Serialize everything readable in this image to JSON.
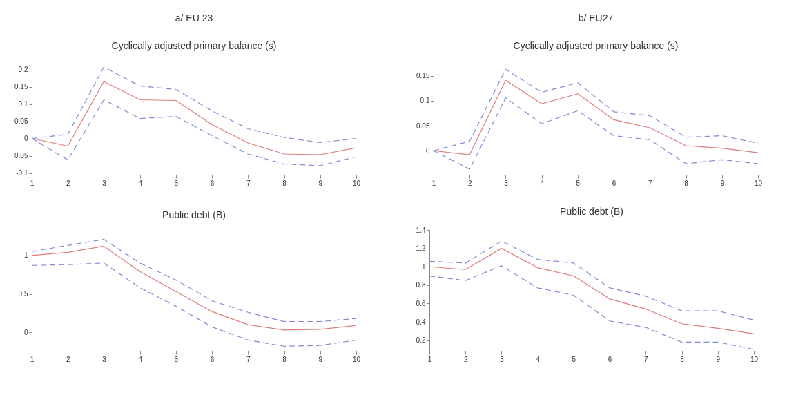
{
  "chart_data": [
    {
      "type": "line",
      "title": "a/ EU 23",
      "subtitle": "Cyclically adjusted primary balance (s)",
      "x": [
        1,
        2,
        3,
        4,
        5,
        6,
        7,
        8,
        9,
        10
      ],
      "xlim": [
        1,
        10
      ],
      "xticks": [
        1,
        2,
        3,
        4,
        5,
        6,
        7,
        8,
        9,
        10
      ],
      "ylim": [
        -0.105,
        0.225
      ],
      "yticks": [
        -0.1,
        {
          "value": -0.05,
          "label": "0.05"
        },
        0,
        0.05,
        0.1,
        0.15,
        0.2
      ],
      "grid": false,
      "series": [
        {
          "color": "#e07a7a",
          "line_style": "solid",
          "values": [
            0,
            -0.022,
            0.165,
            0.112,
            0.11,
            0.04,
            -0.013,
            -0.045,
            -0.047,
            -0.027
          ]
        },
        {
          "color": "#8088d8",
          "line_style": "dashed",
          "values": [
            0,
            0.012,
            0.207,
            0.152,
            0.142,
            0.08,
            0.028,
            0.003,
            -0.012,
            0
          ]
        },
        {
          "color": "#8088d8",
          "line_style": "dashed",
          "values": [
            0,
            -0.062,
            0.112,
            0.058,
            0.064,
            0.008,
            -0.045,
            -0.074,
            -0.079,
            -0.053
          ]
        }
      ]
    },
    {
      "type": "line",
      "title": "b/ EU27",
      "subtitle": "Cyclically adjusted primary balance (s)",
      "x": [
        1,
        2,
        3,
        4,
        5,
        6,
        7,
        8,
        9,
        10
      ],
      "xlim": [
        1,
        10
      ],
      "xticks": [
        1,
        2,
        3,
        4,
        5,
        6,
        7,
        8,
        9,
        10
      ],
      "ylim": [
        -0.048,
        0.18
      ],
      "yticks": [
        0,
        0.05,
        0.1,
        0.15
      ],
      "grid": false,
      "series": [
        {
          "color": "#e07a7a",
          "line_style": "solid",
          "values": [
            0,
            -0.008,
            0.141,
            0.094,
            0.114,
            0.062,
            0.046,
            0.01,
            0.005,
            -0.004
          ]
        },
        {
          "color": "#8088d8",
          "line_style": "dashed",
          "values": [
            0,
            0.019,
            0.163,
            0.117,
            0.136,
            0.078,
            0.07,
            0.027,
            0.03,
            0.015
          ]
        },
        {
          "color": "#8088d8",
          "line_style": "dashed",
          "values": [
            0,
            -0.037,
            0.106,
            0.054,
            0.08,
            0.03,
            0.022,
            -0.026,
            -0.018,
            -0.026
          ]
        }
      ]
    },
    {
      "type": "line",
      "title": "Public debt (B)",
      "x": [
        1,
        2,
        3,
        4,
        5,
        6,
        7,
        8,
        9,
        10
      ],
      "xlim": [
        1,
        10
      ],
      "xticks": [
        1,
        2,
        3,
        4,
        5,
        6,
        7,
        8,
        9,
        10
      ],
      "ylim": [
        -0.24,
        1.33
      ],
      "yticks": [
        0,
        0.5,
        1
      ],
      "grid": false,
      "series": [
        {
          "color": "#e07a7a",
          "line_style": "solid",
          "values": [
            1.0,
            1.04,
            1.12,
            0.79,
            0.53,
            0.27,
            0.1,
            0.03,
            0.04,
            0.09
          ]
        },
        {
          "color": "#8088d8",
          "line_style": "dashed",
          "values": [
            1.05,
            1.13,
            1.21,
            0.9,
            0.68,
            0.41,
            0.26,
            0.14,
            0.14,
            0.18
          ]
        },
        {
          "color": "#8088d8",
          "line_style": "dashed",
          "values": [
            0.87,
            0.88,
            0.9,
            0.58,
            0.34,
            0.07,
            -0.1,
            -0.18,
            -0.17,
            -0.1
          ]
        }
      ]
    },
    {
      "type": "line",
      "title": "Public debt (B)",
      "x": [
        1,
        2,
        3,
        4,
        5,
        6,
        7,
        8,
        9,
        10
      ],
      "xlim": [
        1,
        10
      ],
      "xticks": [
        1,
        2,
        3,
        4,
        5,
        6,
        7,
        8,
        9,
        10
      ],
      "ylim": [
        0.085,
        1.4
      ],
      "yticks": [
        0.2,
        0.4,
        0.6,
        0.8,
        1,
        1.2,
        1.4
      ],
      "grid": false,
      "series": [
        {
          "color": "#e07a7a",
          "line_style": "solid",
          "values": [
            1.0,
            0.97,
            1.2,
            0.99,
            0.9,
            0.65,
            0.54,
            0.38,
            0.33,
            0.27
          ]
        },
        {
          "color": "#8088d8",
          "line_style": "dashed",
          "values": [
            1.06,
            1.04,
            1.28,
            1.08,
            1.04,
            0.77,
            0.68,
            0.52,
            0.52,
            0.42
          ]
        },
        {
          "color": "#8088d8",
          "line_style": "dashed",
          "values": [
            0.9,
            0.85,
            1.01,
            0.77,
            0.69,
            0.41,
            0.34,
            0.18,
            0.18,
            0.1
          ]
        }
      ]
    }
  ]
}
